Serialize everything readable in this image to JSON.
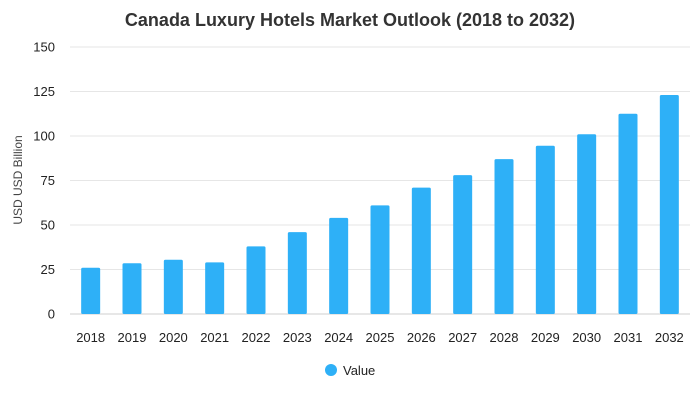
{
  "chart_data": {
    "type": "bar",
    "title": "Canada Luxury Hotels Market Outlook (2018 to 2032)",
    "xlabel": "",
    "ylabel": "USD USD Billion",
    "ylim": [
      0,
      150
    ],
    "yticks": [
      0,
      25,
      50,
      75,
      100,
      125,
      150
    ],
    "categories": [
      "2018",
      "2019",
      "2020",
      "2021",
      "2022",
      "2023",
      "2024",
      "2025",
      "2026",
      "2027",
      "2028",
      "2029",
      "2030",
      "2031",
      "2032"
    ],
    "series": [
      {
        "name": "Value",
        "color": "#2eb0f7",
        "values": [
          26,
          28.5,
          30.5,
          29,
          38,
          46,
          54,
          61,
          71,
          78,
          87,
          94.5,
          101,
          112.5,
          123
        ]
      }
    ],
    "grid": true,
    "legend_position": "bottom-center"
  }
}
